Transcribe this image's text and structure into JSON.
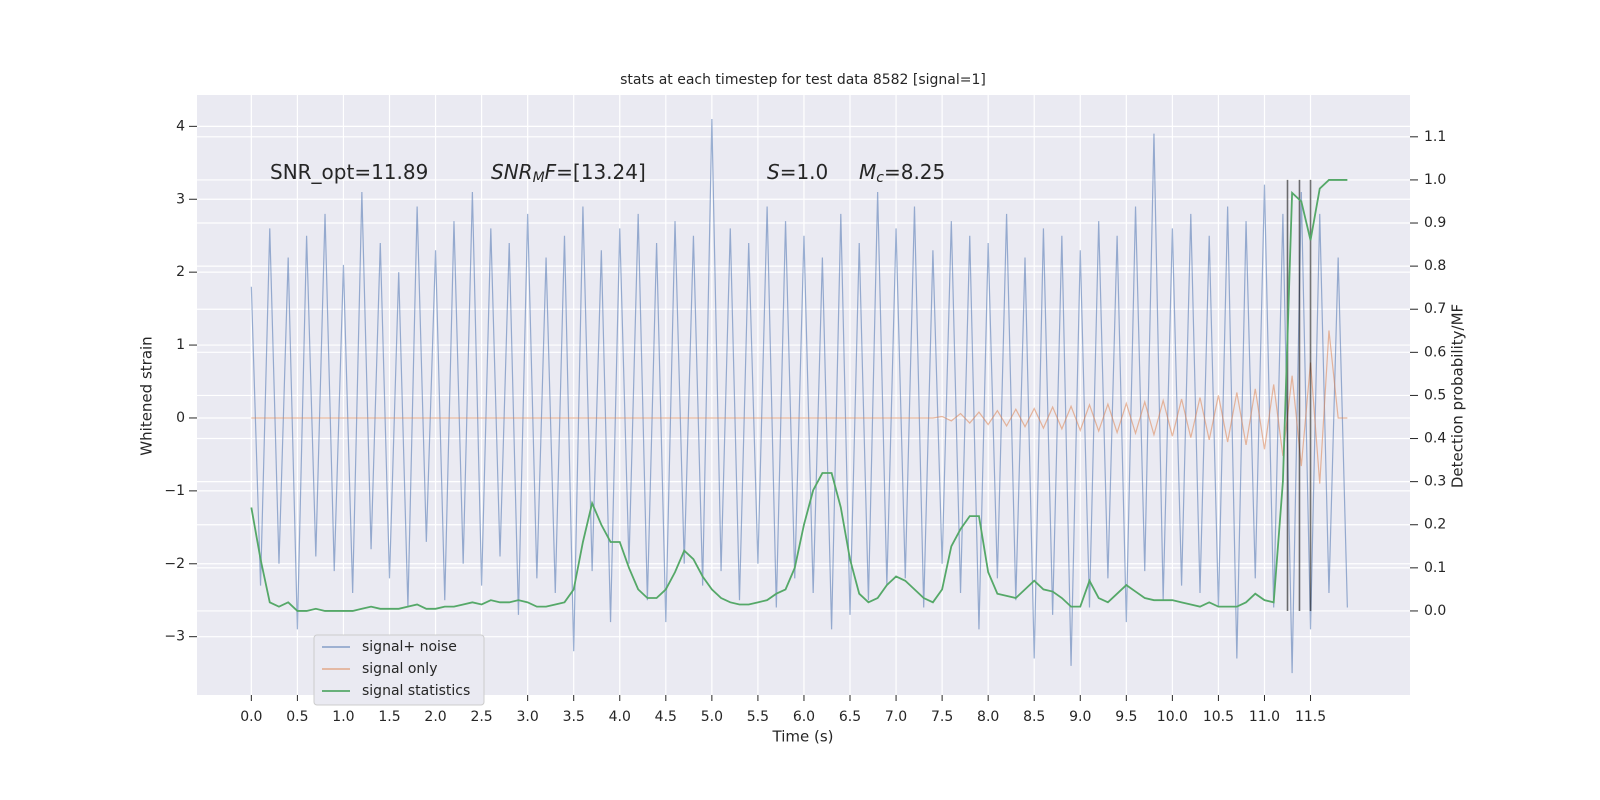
{
  "chart_data": {
    "type": "line",
    "title": "stats at each timestep for test data 8582 [signal=1]",
    "xlabel": "Time (s)",
    "ylabel": "Whitened strain",
    "y2label": "Detection probability/MF",
    "annotations": [
      {
        "parts": [
          {
            "text": "SNR_opt=11.89",
            "style": "normal"
          }
        ]
      },
      {
        "parts": [
          {
            "text": "SNR",
            "style": "italic"
          },
          {
            "text": "M",
            "style": "sub"
          },
          {
            "text": "F",
            "style": "italic"
          },
          {
            "text": "=[13.24]",
            "style": "normal"
          }
        ]
      },
      {
        "parts": [
          {
            "text": "S",
            "style": "italic"
          },
          {
            "text": "=1.0",
            "style": "normal"
          }
        ]
      },
      {
        "parts": [
          {
            "text": "M",
            "style": "italic"
          },
          {
            "text": "c",
            "style": "sub"
          },
          {
            "text": "=8.25",
            "style": "normal"
          }
        ]
      }
    ],
    "x": [
      0,
      0.1,
      0.2,
      0.3,
      0.4,
      0.5,
      0.6,
      0.7,
      0.8,
      0.9,
      1,
      1.1,
      1.2,
      1.3,
      1.4,
      1.5,
      1.6,
      1.7,
      1.8,
      1.9,
      2,
      2.1,
      2.2,
      2.3,
      2.4,
      2.5,
      2.6,
      2.7,
      2.8,
      2.9,
      3,
      3.1,
      3.2,
      3.3,
      3.4,
      3.5,
      3.6,
      3.7,
      3.8,
      3.9,
      4,
      4.1,
      4.2,
      4.3,
      4.4,
      4.5,
      4.6,
      4.7,
      4.8,
      4.9,
      5,
      5.1,
      5.2,
      5.3,
      5.4,
      5.5,
      5.6,
      5.7,
      5.8,
      5.9,
      6,
      6.1,
      6.2,
      6.3,
      6.4,
      6.5,
      6.6,
      6.7,
      6.8,
      6.9,
      7,
      7.1,
      7.2,
      7.3,
      7.4,
      7.5,
      7.6,
      7.7,
      7.8,
      7.9,
      8,
      8.1,
      8.2,
      8.3,
      8.4,
      8.5,
      8.6,
      8.7,
      8.8,
      8.9,
      9,
      9.1,
      9.2,
      9.3,
      9.4,
      9.5,
      9.6,
      9.7,
      9.8,
      9.9,
      10,
      10.1,
      10.2,
      10.3,
      10.4,
      10.5,
      10.6,
      10.7,
      10.8,
      10.9,
      11,
      11.1,
      11.2,
      11.3,
      11.4,
      11.5,
      11.6,
      11.7,
      11.8,
      11.9
    ],
    "series": [
      {
        "name": "signal+ noise",
        "color": "#4c72b0",
        "values": [
          1.8,
          -2.3,
          2.6,
          -2.0,
          2.2,
          -2.9,
          2.5,
          -1.9,
          2.8,
          -2.1,
          2.1,
          -2.4,
          3.1,
          -1.8,
          2.4,
          -2.2,
          2.0,
          -2.6,
          2.9,
          -1.7,
          2.3,
          -2.5,
          2.7,
          -2.0,
          3.1,
          -2.3,
          2.6,
          -1.9,
          2.4,
          -2.7,
          2.8,
          -2.2,
          2.2,
          -2.4,
          2.5,
          -3.2,
          2.9,
          -2.1,
          2.3,
          -2.8,
          2.6,
          -2.0,
          2.8,
          -2.5,
          2.4,
          -2.8,
          2.7,
          -2.0,
          2.5,
          -2.3,
          4.1,
          -2.1,
          2.6,
          -2.5,
          2.4,
          -2.0,
          2.9,
          -2.6,
          2.7,
          -2.2,
          2.5,
          -2.4,
          2.2,
          -2.9,
          2.8,
          -2.7,
          2.4,
          -2.5,
          3.1,
          -2.3,
          2.6,
          -2.2,
          2.9,
          -2.6,
          2.3,
          -2.0,
          2.7,
          -2.4,
          2.5,
          -2.9,
          2.4,
          -2.2,
          2.8,
          -2.5,
          2.2,
          -3.3,
          2.6,
          -2.7,
          2.5,
          -3.4,
          2.3,
          -2.6,
          2.7,
          -2.2,
          2.5,
          -2.8,
          2.9,
          -2.1,
          3.9,
          -2.5,
          2.6,
          -2.3,
          2.8,
          -2.4,
          2.5,
          -2.6,
          2.9,
          -3.3,
          2.7,
          -2.2,
          3.2,
          -2.6,
          2.8,
          -3.5,
          3.1,
          -2.9,
          2.8,
          -2.4,
          2.2,
          -2.6
        ]
      },
      {
        "name": "signal only",
        "color": "#dd8452",
        "values": [
          0,
          0,
          0,
          0,
          0,
          0,
          0,
          0,
          0,
          0,
          0,
          0,
          0,
          0,
          0,
          0,
          0,
          0,
          0,
          0,
          0,
          0,
          0,
          0,
          0,
          0,
          0,
          0,
          0,
          0,
          0,
          0,
          0,
          0,
          0,
          0,
          0,
          0,
          0,
          0,
          0,
          0,
          0,
          0,
          0,
          0,
          0,
          0,
          0,
          0,
          0,
          0,
          0,
          0,
          0,
          0,
          0,
          0,
          0,
          0,
          0,
          0,
          0,
          0,
          0,
          0,
          0,
          0,
          0,
          0,
          0,
          0,
          0,
          0,
          0,
          0.02,
          -0.04,
          0.06,
          -0.07,
          0.08,
          -0.09,
          0.1,
          -0.11,
          0.12,
          -0.12,
          0.13,
          -0.14,
          0.15,
          -0.15,
          0.16,
          -0.17,
          0.18,
          -0.18,
          0.19,
          -0.2,
          0.2,
          -0.21,
          0.22,
          -0.23,
          0.24,
          -0.25,
          0.26,
          -0.27,
          0.28,
          -0.3,
          0.31,
          -0.33,
          0.35,
          -0.37,
          0.4,
          -0.43,
          0.46,
          -0.52,
          0.58,
          -0.66,
          0.76,
          -0.9,
          1.2,
          0,
          0
        ]
      },
      {
        "name": "signal statistics",
        "color": "#55a868",
        "axis": "y2",
        "values": [
          0.24,
          0.12,
          0.02,
          0.01,
          0.02,
          0.0,
          0.0,
          0.005,
          0.0,
          0.0,
          0.0,
          0.0,
          0.005,
          0.01,
          0.005,
          0.005,
          0.005,
          0.01,
          0.015,
          0.005,
          0.005,
          0.01,
          0.01,
          0.015,
          0.02,
          0.015,
          0.025,
          0.02,
          0.02,
          0.025,
          0.02,
          0.01,
          0.01,
          0.015,
          0.02,
          0.05,
          0.16,
          0.25,
          0.2,
          0.16,
          0.16,
          0.1,
          0.05,
          0.03,
          0.03,
          0.05,
          0.09,
          0.14,
          0.12,
          0.08,
          0.05,
          0.03,
          0.02,
          0.015,
          0.015,
          0.02,
          0.025,
          0.04,
          0.05,
          0.1,
          0.2,
          0.28,
          0.32,
          0.32,
          0.24,
          0.12,
          0.04,
          0.02,
          0.03,
          0.06,
          0.08,
          0.07,
          0.05,
          0.03,
          0.02,
          0.05,
          0.15,
          0.19,
          0.22,
          0.22,
          0.09,
          0.04,
          0.035,
          0.03,
          0.05,
          0.07,
          0.05,
          0.045,
          0.03,
          0.01,
          0.01,
          0.07,
          0.03,
          0.02,
          0.04,
          0.06,
          0.045,
          0.03,
          0.025,
          0.025,
          0.025,
          0.02,
          0.015,
          0.01,
          0.02,
          0.01,
          0.01,
          0.01,
          0.02,
          0.04,
          0.025,
          0.02,
          0.3,
          0.97,
          0.95,
          0.86,
          0.98,
          1.0,
          1.0,
          1.0
        ]
      }
    ],
    "vlines": [
      11.25,
      11.38,
      11.5
    ],
    "vline_color": "#000000",
    "xlim": [
      -0.59,
      12.58
    ],
    "xticks": [
      {
        "value": 0,
        "label": "0.0"
      },
      0.5,
      {
        "value": 1,
        "label": "1.0"
      },
      1.5,
      {
        "value": 2,
        "label": "2.0"
      },
      2.5,
      {
        "value": 3,
        "label": "3.0"
      },
      3.5,
      {
        "value": 4,
        "label": "4.0"
      },
      4.5,
      {
        "value": 5,
        "label": "5.0"
      },
      5.5,
      {
        "value": 6,
        "label": "6.0"
      },
      6.5,
      {
        "value": 7,
        "label": "7.0"
      },
      7.5,
      {
        "value": 8,
        "label": "8.0"
      },
      8.5,
      {
        "value": 9,
        "label": "9.0"
      },
      9.5,
      {
        "value": 10,
        "label": "10.0"
      },
      10.5,
      {
        "value": 11,
        "label": "11.0"
      },
      11.5
    ],
    "ylim": [
      -3.8,
      4.43
    ],
    "yticks": [
      {
        "value": -3,
        "label": "−3"
      },
      {
        "value": -2,
        "label": "−2"
      },
      {
        "value": -1,
        "label": "−1"
      },
      0,
      1,
      2,
      3,
      4
    ],
    "y2lim": [
      -0.195,
      1.197
    ],
    "y2ticks": [
      {
        "value": 0,
        "label": "0.0"
      },
      0.1,
      0.2,
      0.3,
      0.4,
      0.5,
      0.6,
      0.7,
      0.8,
      0.9,
      {
        "value": 1,
        "label": "1.0"
      },
      1.1
    ],
    "grid": true,
    "legend": "lower left"
  }
}
